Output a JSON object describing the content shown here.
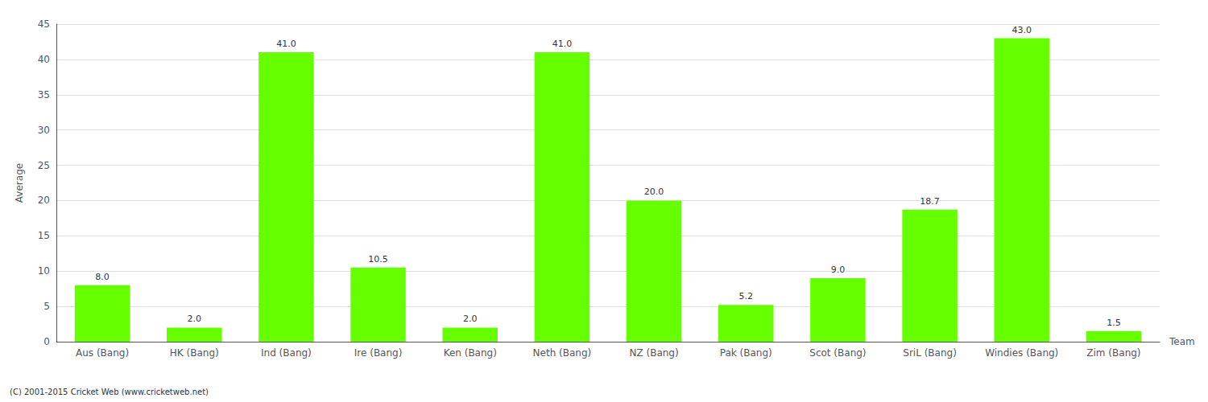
{
  "chart_data": {
    "type": "bar",
    "categories": [
      "Aus (Bang)",
      "HK (Bang)",
      "Ind (Bang)",
      "Ire (Bang)",
      "Ken (Bang)",
      "Neth (Bang)",
      "NZ (Bang)",
      "Pak (Bang)",
      "Scot (Bang)",
      "SriL (Bang)",
      "Windies (Bang)",
      "Zim (Bang)"
    ],
    "values": [
      8.0,
      2.0,
      41.0,
      10.5,
      2.0,
      41.0,
      20.0,
      5.2,
      9.0,
      18.7,
      43.0,
      1.5
    ],
    "value_labels": [
      "8.0",
      "2.0",
      "41.0",
      "10.5",
      "2.0",
      "41.0",
      "20.0",
      "5.2",
      "9.0",
      "18.7",
      "43.0",
      "1.5"
    ],
    "data_labels": true,
    "color": "#66ff00",
    "xlabel": "Team",
    "ylabel": "Average",
    "ylim": [
      0,
      45
    ],
    "yticks": [
      0,
      5,
      10,
      15,
      20,
      25,
      30,
      35,
      40,
      45
    ],
    "grid": true,
    "annotations": [
      "(C) 2001-2015 Cricket Web (www.cricketweb.net)"
    ]
  }
}
